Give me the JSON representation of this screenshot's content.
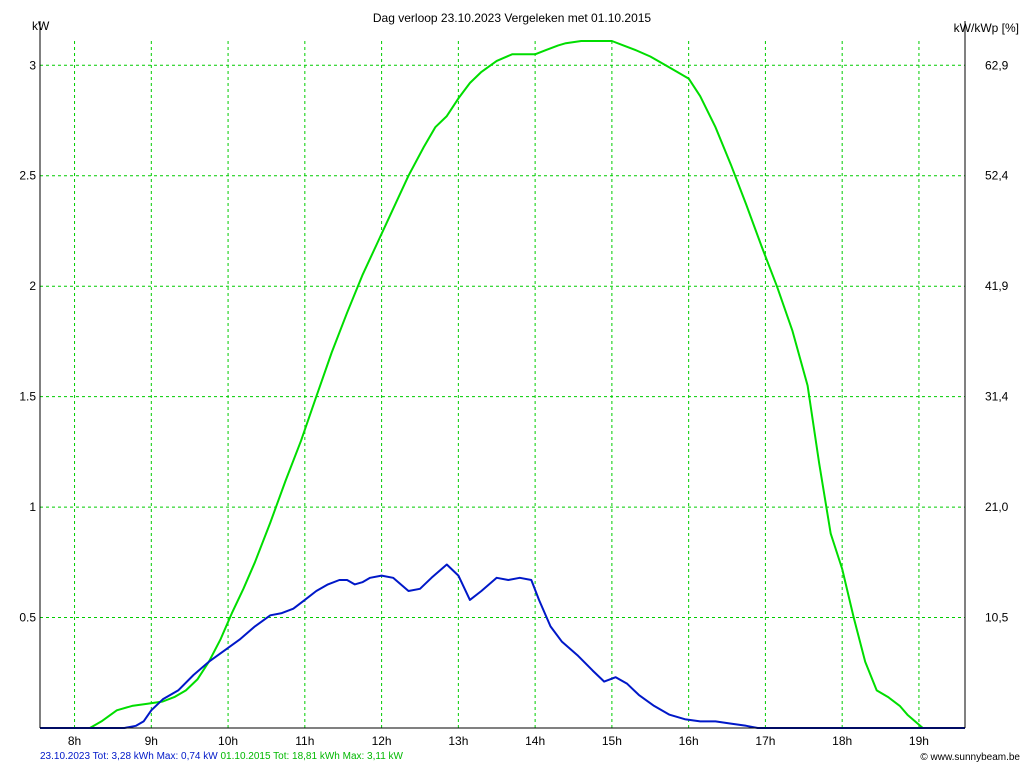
{
  "header": {
    "title": "Dag  verloop 23.10.2023   Vergeleken met 01.10.2015",
    "left_unit": "kW",
    "right_unit": "kW/kWp [%]"
  },
  "footer": {
    "series1_summary": "23.10.2023 Tot: 3,28 kWh Max: 0,74 kW",
    "series2_summary": "01.10.2015 Tot: 18,81 kWh Max: 3,11 kW",
    "credit": "© www.sunnybeam.be"
  },
  "colors": {
    "series_2023": "#0018c8",
    "series_2015": "#00dd00",
    "grid": "#00cc00",
    "axis": "#000000"
  },
  "chart_data": {
    "type": "line",
    "title": "Dag  verloop 23.10.2023   Vergeleken met 01.10.2015",
    "xlabel": "",
    "ylabel": "kW",
    "ylabel_right": "kW/kWp [%]",
    "xlim": [
      7.55,
      19.6
    ],
    "ylim": [
      0,
      3.11
    ],
    "grid": true,
    "x_ticks": [
      8,
      9,
      10,
      11,
      12,
      13,
      14,
      15,
      16,
      17,
      18,
      19
    ],
    "x_tick_labels": [
      "8h",
      "9h",
      "10h",
      "11h",
      "12h",
      "13h",
      "14h",
      "15h",
      "16h",
      "17h",
      "18h",
      "19h"
    ],
    "y_ticks": [
      0.5,
      1,
      1.5,
      2,
      2.5,
      3
    ],
    "y_tick_labels": [
      "0.5",
      "1",
      "1.5",
      "2",
      "2.5",
      "3"
    ],
    "y_right_tick_labels": [
      "10,5",
      "21,0",
      "31,4",
      "41,9",
      "52,4",
      "62,9"
    ],
    "series": [
      {
        "name": "23.10.2023",
        "color": "#0018c8",
        "x": [
          7.55,
          8.5,
          8.65,
          8.8,
          8.9,
          9.0,
          9.15,
          9.35,
          9.55,
          9.75,
          9.95,
          10.15,
          10.35,
          10.55,
          10.7,
          10.85,
          11.0,
          11.15,
          11.3,
          11.45,
          11.55,
          11.65,
          11.75,
          11.85,
          12.0,
          12.15,
          12.35,
          12.5,
          12.65,
          12.85,
          13.0,
          13.15,
          13.3,
          13.5,
          13.65,
          13.8,
          13.95,
          14.05,
          14.2,
          14.35,
          14.55,
          14.75,
          14.9,
          15.05,
          15.2,
          15.35,
          15.55,
          15.75,
          15.95,
          16.15,
          16.35,
          16.55,
          16.75,
          16.9,
          17.05,
          17.3,
          19.6
        ],
        "y": [
          0.0,
          0.0,
          0.0,
          0.01,
          0.03,
          0.08,
          0.13,
          0.17,
          0.24,
          0.3,
          0.35,
          0.4,
          0.46,
          0.51,
          0.52,
          0.54,
          0.58,
          0.62,
          0.65,
          0.67,
          0.67,
          0.65,
          0.66,
          0.68,
          0.69,
          0.68,
          0.62,
          0.63,
          0.68,
          0.74,
          0.69,
          0.58,
          0.62,
          0.68,
          0.67,
          0.68,
          0.67,
          0.58,
          0.46,
          0.39,
          0.33,
          0.26,
          0.21,
          0.23,
          0.2,
          0.15,
          0.1,
          0.06,
          0.04,
          0.03,
          0.03,
          0.02,
          0.01,
          0.0,
          0.0,
          0.0,
          0.0
        ]
      },
      {
        "name": "01.10.2015",
        "color": "#00dd00",
        "x": [
          7.55,
          8.2,
          8.35,
          8.55,
          8.75,
          8.95,
          9.15,
          9.3,
          9.45,
          9.6,
          9.75,
          9.9,
          10.05,
          10.2,
          10.35,
          10.55,
          10.75,
          10.95,
          11.15,
          11.35,
          11.55,
          11.75,
          11.95,
          12.15,
          12.35,
          12.55,
          12.7,
          12.85,
          13.0,
          13.15,
          13.3,
          13.5,
          13.7,
          13.9,
          14.0,
          14.15,
          14.3,
          14.4,
          14.6,
          14.8,
          15.0,
          15.15,
          15.3,
          15.5,
          15.7,
          15.85,
          16.0,
          16.15,
          16.35,
          16.55,
          16.75,
          16.95,
          17.15,
          17.35,
          17.55,
          17.7,
          17.85,
          18.0,
          18.15,
          18.3,
          18.45,
          18.6,
          18.75,
          18.85,
          18.95,
          19.05,
          19.6
        ],
        "y": [
          0.0,
          0.0,
          0.03,
          0.08,
          0.1,
          0.11,
          0.12,
          0.14,
          0.17,
          0.22,
          0.3,
          0.4,
          0.52,
          0.63,
          0.75,
          0.93,
          1.12,
          1.3,
          1.5,
          1.7,
          1.88,
          2.05,
          2.2,
          2.35,
          2.5,
          2.63,
          2.72,
          2.77,
          2.85,
          2.92,
          2.97,
          3.02,
          3.05,
          3.05,
          3.05,
          3.07,
          3.09,
          3.1,
          3.11,
          3.11,
          3.11,
          3.09,
          3.07,
          3.04,
          3.0,
          2.97,
          2.94,
          2.86,
          2.72,
          2.55,
          2.37,
          2.18,
          2.0,
          1.8,
          1.55,
          1.2,
          0.88,
          0.72,
          0.5,
          0.3,
          0.17,
          0.14,
          0.1,
          0.06,
          0.03,
          0.0,
          0.0
        ]
      }
    ]
  }
}
